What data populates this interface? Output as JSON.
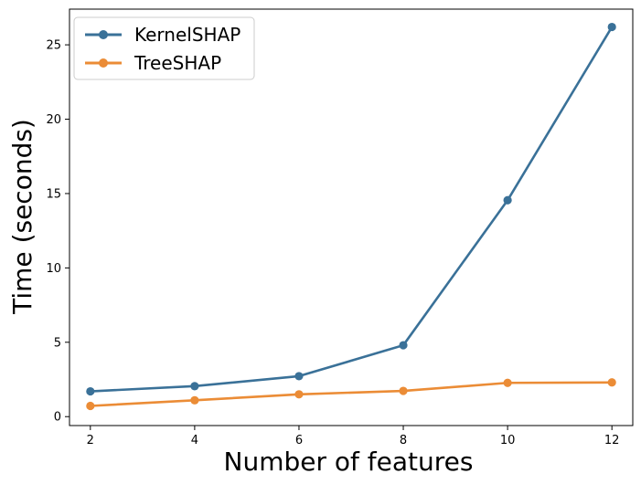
{
  "chart_data": {
    "type": "line",
    "title": "",
    "xlabel": "Number of features",
    "ylabel": "Time (seconds)",
    "x": [
      2,
      4,
      6,
      8,
      10,
      12
    ],
    "xlim": [
      1.6,
      12.4
    ],
    "ylim": [
      -0.6,
      27.4
    ],
    "xticks": [
      "2",
      "4",
      "6",
      "8",
      "10",
      "12"
    ],
    "yticks": [
      "0",
      "5",
      "10",
      "15",
      "20",
      "25"
    ],
    "grid": false,
    "legend_position": "top-left",
    "series": [
      {
        "name": "KernelSHAP",
        "color": "#3a7198",
        "values": [
          1.7,
          2.05,
          2.72,
          4.8,
          14.55,
          26.2
        ]
      },
      {
        "name": "TreeSHAP",
        "color": "#eb8c36",
        "values": [
          0.72,
          1.1,
          1.5,
          1.73,
          2.27,
          2.3
        ]
      }
    ]
  }
}
